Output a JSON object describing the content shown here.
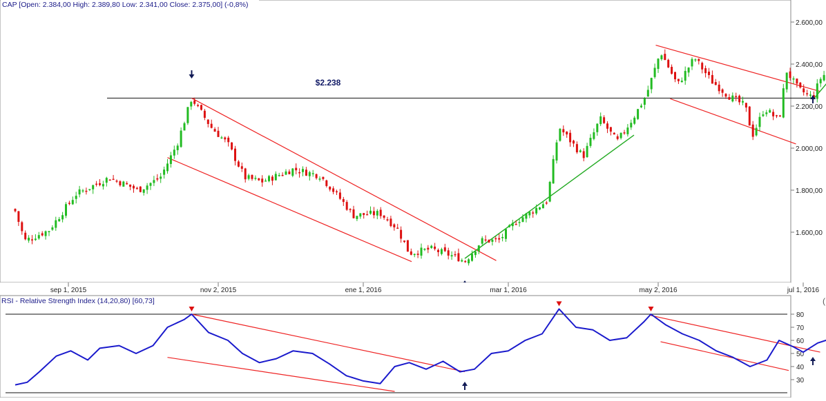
{
  "header": {
    "legend": "CAP [Open: 2.384,00  High: 2.389,80  Low: 2.341,00  Close: 2.375,00] (-0,8%)",
    "resistance_label": "$2.238"
  },
  "rsi_header": {
    "legend": "RSI - Relative Strength Index (14,20,80) [60,73]"
  },
  "colors": {
    "up": "#22bb22",
    "down": "#dd1111",
    "trend": "#ee2222",
    "support": "#22aa22",
    "rsi_line": "#1a1acc",
    "arrow": "#111a55"
  },
  "chart_data": [
    {
      "type": "candlestick",
      "title": "CAP",
      "x_tick_labels": [
        "sep 1, 2015",
        "nov 2, 2015",
        "ene 1, 2016",
        "mar 1, 2016",
        "may 2, 2016",
        "jul 1, 2016"
      ],
      "y_tick_labels": [
        "1.600,00",
        "1.800,00",
        "2.000,00",
        "2.200,00",
        "2.400,00",
        "2.600,00"
      ],
      "y_ticks": [
        1600,
        1800,
        2000,
        2200,
        2400,
        2600
      ],
      "ylim": [
        1445,
        2680
      ],
      "date_range": [
        "2015-08-10",
        "2016-07-12"
      ],
      "last_bar": {
        "open": 2384.0,
        "high": 2389.8,
        "low": 2341.0,
        "close": 2375.0,
        "change": "-0,8%"
      },
      "approx_closes": [
        {
          "date": "2015-08-10",
          "close": 1700
        },
        {
          "date": "2015-08-14",
          "close": 1560
        },
        {
          "date": "2015-08-24",
          "close": 1610
        },
        {
          "date": "2015-09-04",
          "close": 1780
        },
        {
          "date": "2015-09-18",
          "close": 1860
        },
        {
          "date": "2015-09-30",
          "close": 1800
        },
        {
          "date": "2015-10-09",
          "close": 1860
        },
        {
          "date": "2015-10-16",
          "close": 2020
        },
        {
          "date": "2015-10-22",
          "close": 2238
        },
        {
          "date": "2015-10-30",
          "close": 2100
        },
        {
          "date": "2015-11-06",
          "close": 2020
        },
        {
          "date": "2015-11-13",
          "close": 1860
        },
        {
          "date": "2015-11-20",
          "close": 1840
        },
        {
          "date": "2015-12-03",
          "close": 1900
        },
        {
          "date": "2015-12-14",
          "close": 1870
        },
        {
          "date": "2015-12-21",
          "close": 1780
        },
        {
          "date": "2015-12-28",
          "close": 1680
        },
        {
          "date": "2016-01-08",
          "close": 1690
        },
        {
          "date": "2016-01-15",
          "close": 1620
        },
        {
          "date": "2016-01-20",
          "close": 1500
        },
        {
          "date": "2016-01-29",
          "close": 1520
        },
        {
          "date": "2016-02-09",
          "close": 1480
        },
        {
          "date": "2016-02-12",
          "close": 1460
        },
        {
          "date": "2016-02-19",
          "close": 1560
        },
        {
          "date": "2016-02-26",
          "close": 1560
        },
        {
          "date": "2016-03-04",
          "close": 1650
        },
        {
          "date": "2016-03-11",
          "close": 1700
        },
        {
          "date": "2016-03-17",
          "close": 1750
        },
        {
          "date": "2016-03-22",
          "close": 2100
        },
        {
          "date": "2016-04-01",
          "close": 1960
        },
        {
          "date": "2016-04-08",
          "close": 2140
        },
        {
          "date": "2016-04-15",
          "close": 2030
        },
        {
          "date": "2016-04-22",
          "close": 2150
        },
        {
          "date": "2016-04-27",
          "close": 2250
        },
        {
          "date": "2016-05-03",
          "close": 2460
        },
        {
          "date": "2016-05-10",
          "close": 2300
        },
        {
          "date": "2016-05-17",
          "close": 2430
        },
        {
          "date": "2016-05-24",
          "close": 2320
        },
        {
          "date": "2016-05-31",
          "close": 2250
        },
        {
          "date": "2016-06-07",
          "close": 2200
        },
        {
          "date": "2016-06-10",
          "close": 2060
        },
        {
          "date": "2016-06-15",
          "close": 2190
        },
        {
          "date": "2016-06-21",
          "close": 2130
        },
        {
          "date": "2016-06-24",
          "close": 2370
        },
        {
          "date": "2016-06-29",
          "close": 2280
        },
        {
          "date": "2016-07-05",
          "close": 2240
        },
        {
          "date": "2016-07-08",
          "close": 2330
        },
        {
          "date": "2016-07-12",
          "close": 2375
        }
      ],
      "annotations": [
        {
          "type": "horizontal-line",
          "value": 2238,
          "from": "2015-09-17",
          "to": "2016-07-06",
          "label": "$2.238"
        },
        {
          "type": "down-channel",
          "upper": [
            [
              "2015-10-22",
              2238
            ],
            [
              "2016-02-25",
              1465
            ]
          ],
          "lower": [
            [
              "2015-10-12",
              1955
            ],
            [
              "2016-01-21",
              1460
            ]
          ]
        },
        {
          "type": "support",
          "points": [
            [
              "2016-02-12",
              1475
            ],
            [
              "2016-04-22",
              2062
            ]
          ]
        },
        {
          "type": "down-channel",
          "upper": [
            [
              "2016-05-01",
              2490
            ],
            [
              "2016-07-08",
              2270
            ]
          ],
          "lower": [
            [
              "2016-05-07",
              2235
            ],
            [
              "2016-06-28",
              2020
            ]
          ]
        },
        {
          "type": "support",
          "points": [
            [
              "2016-07-05",
              2230
            ],
            [
              "2016-07-20",
              2435
            ]
          ]
        },
        {
          "type": "arrow-down",
          "date": "2015-10-22"
        },
        {
          "type": "arrow-up",
          "date": "2016-02-12"
        },
        {
          "type": "arrow-up",
          "date": "2016-07-05"
        }
      ]
    },
    {
      "type": "line",
      "title": "RSI - Relative Strength Index (14,20,80)",
      "last_value": 60.73,
      "y_tick_labels": [
        "30",
        "40",
        "50",
        "60",
        "70",
        "80"
      ],
      "y_ticks": [
        30,
        40,
        50,
        60,
        70,
        80
      ],
      "overbought": 80,
      "oversold": 20,
      "ylim": [
        20,
        85
      ],
      "x": [
        "2015-08-10",
        "2015-08-15",
        "2015-08-20",
        "2015-08-27",
        "2015-09-02",
        "2015-09-09",
        "2015-09-14",
        "2015-09-22",
        "2015-09-29",
        "2015-10-06",
        "2015-10-12",
        "2015-10-19",
        "2015-10-22",
        "2015-10-29",
        "2015-11-06",
        "2015-11-12",
        "2015-11-19",
        "2015-11-26",
        "2015-12-03",
        "2015-12-11",
        "2015-12-18",
        "2015-12-25",
        "2016-01-01",
        "2016-01-08",
        "2016-01-14",
        "2016-01-20",
        "2016-01-27",
        "2016-02-03",
        "2016-02-10",
        "2016-02-16",
        "2016-02-23",
        "2016-03-01",
        "2016-03-08",
        "2016-03-15",
        "2016-03-22",
        "2016-03-29",
        "2016-04-05",
        "2016-04-12",
        "2016-04-19",
        "2016-04-26",
        "2016-04-29",
        "2016-05-05",
        "2016-05-12",
        "2016-05-19",
        "2016-05-26",
        "2016-06-02",
        "2016-06-09",
        "2016-06-16",
        "2016-06-21",
        "2016-06-27",
        "2016-07-01",
        "2016-07-07",
        "2016-07-12"
      ],
      "y": [
        26,
        28,
        36,
        48,
        52,
        45,
        54,
        56,
        50,
        56,
        70,
        76,
        80,
        66,
        60,
        50,
        43,
        46,
        52,
        50,
        42,
        33,
        29,
        27,
        40,
        43,
        38,
        44,
        36,
        38,
        50,
        52,
        60,
        65,
        84,
        70,
        68,
        60,
        62,
        74,
        80,
        72,
        65,
        60,
        52,
        47,
        40,
        45,
        60,
        55,
        51,
        58,
        61
      ]
    }
  ]
}
